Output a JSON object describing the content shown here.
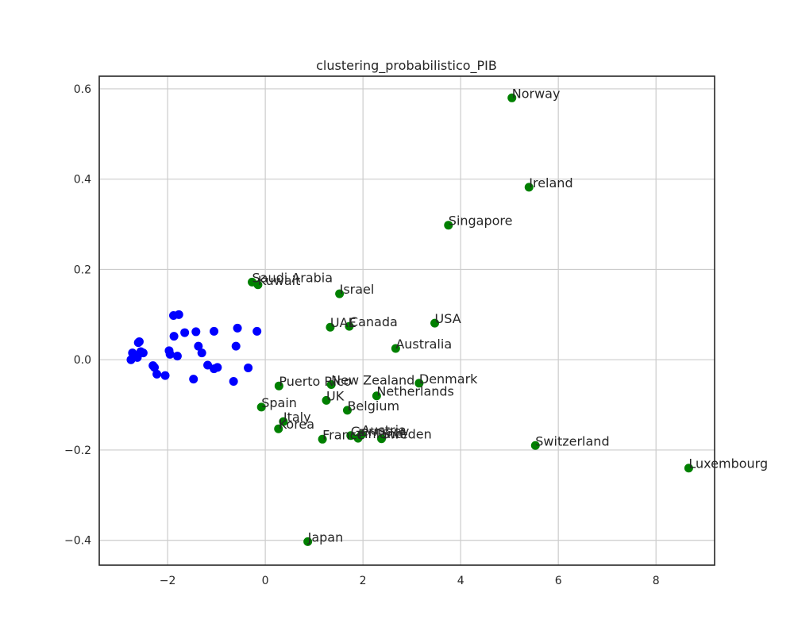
{
  "chart_data": {
    "type": "scatter",
    "title": "clustering_probabilistico_PIB",
    "xlabel": "",
    "ylabel": "",
    "xlim": [
      -3.4,
      9.2
    ],
    "ylim": [
      -0.455,
      0.628
    ],
    "xticks": [
      -2,
      0,
      2,
      4,
      6,
      8
    ],
    "xtick_labels": [
      "−2",
      "0",
      "2",
      "4",
      "6",
      "8"
    ],
    "yticks": [
      -0.4,
      -0.2,
      0.0,
      0.2,
      0.4,
      0.6
    ],
    "ytick_labels": [
      "−0.4",
      "−0.2",
      "0.0",
      "0.2",
      "0.4",
      "0.6"
    ],
    "grid": true,
    "colors": {
      "cluster_blue": "#0000ff",
      "cluster_green": "#008000"
    },
    "series": [
      {
        "color": "#0000ff",
        "points": [
          {
            "x": -2.75,
            "y": 0.0
          },
          {
            "x": -2.72,
            "y": 0.015
          },
          {
            "x": -2.68,
            "y": 0.008
          },
          {
            "x": -2.62,
            "y": 0.005
          },
          {
            "x": -2.6,
            "y": 0.038
          },
          {
            "x": -2.58,
            "y": 0.04
          },
          {
            "x": -2.55,
            "y": 0.018
          },
          {
            "x": -2.5,
            "y": 0.015
          },
          {
            "x": -2.3,
            "y": -0.013
          },
          {
            "x": -2.27,
            "y": -0.017
          },
          {
            "x": -2.22,
            "y": -0.032
          },
          {
            "x": -2.05,
            "y": -0.035
          },
          {
            "x": -1.97,
            "y": 0.02
          },
          {
            "x": -1.95,
            "y": 0.012
          },
          {
            "x": -1.88,
            "y": 0.098
          },
          {
            "x": -1.87,
            "y": 0.052
          },
          {
            "x": -1.8,
            "y": 0.008
          },
          {
            "x": -1.77,
            "y": 0.1
          },
          {
            "x": -1.65,
            "y": 0.06
          },
          {
            "x": -1.47,
            "y": -0.043
          },
          {
            "x": -1.42,
            "y": 0.062
          },
          {
            "x": -1.37,
            "y": 0.03
          },
          {
            "x": -1.3,
            "y": 0.015
          },
          {
            "x": -1.18,
            "y": -0.012
          },
          {
            "x": -1.05,
            "y": 0.063
          },
          {
            "x": -1.05,
            "y": -0.02
          },
          {
            "x": -0.98,
            "y": -0.017
          },
          {
            "x": -0.65,
            "y": -0.048
          },
          {
            "x": -0.6,
            "y": 0.03
          },
          {
            "x": -0.57,
            "y": 0.07
          },
          {
            "x": -0.35,
            "y": -0.018
          },
          {
            "x": -0.17,
            "y": 0.063
          }
        ]
      },
      {
        "color": "#008000",
        "points": [
          {
            "x": 5.05,
            "y": 0.58,
            "label": "Norway"
          },
          {
            "x": 5.4,
            "y": 0.382,
            "label": "Ireland"
          },
          {
            "x": 3.75,
            "y": 0.298,
            "label": "Singapore"
          },
          {
            "x": -0.27,
            "y": 0.172,
            "label": "Saudi Arabia"
          },
          {
            "x": -0.15,
            "y": 0.166,
            "label": "Kuwait"
          },
          {
            "x": 1.52,
            "y": 0.146,
            "label": "Israel"
          },
          {
            "x": 3.47,
            "y": 0.081,
            "label": "USA"
          },
          {
            "x": 1.33,
            "y": 0.072,
            "label": "UAE"
          },
          {
            "x": 1.72,
            "y": 0.074,
            "label": "Canada"
          },
          {
            "x": 2.67,
            "y": 0.025,
            "label": "Australia"
          },
          {
            "x": 3.15,
            "y": -0.052,
            "label": "Denmark"
          },
          {
            "x": 0.28,
            "y": -0.058,
            "label": "Puerto Rico"
          },
          {
            "x": 1.35,
            "y": -0.055,
            "label": "New Zealand"
          },
          {
            "x": 2.28,
            "y": -0.08,
            "label": "Netherlands"
          },
          {
            "x": 1.25,
            "y": -0.09,
            "label": "UK"
          },
          {
            "x": -0.08,
            "y": -0.105,
            "label": "Spain"
          },
          {
            "x": 1.68,
            "y": -0.112,
            "label": "Belgium"
          },
          {
            "x": 0.37,
            "y": -0.137,
            "label": "Italy"
          },
          {
            "x": 0.27,
            "y": -0.153,
            "label": "Korea"
          },
          {
            "x": 1.75,
            "y": -0.168,
            "label": "Germany"
          },
          {
            "x": 1.97,
            "y": -0.166,
            "label": "Austria"
          },
          {
            "x": 1.17,
            "y": -0.176,
            "label": "France"
          },
          {
            "x": 1.9,
            "y": -0.174,
            "label": "Finland"
          },
          {
            "x": 2.38,
            "y": -0.175,
            "label": "Sweden"
          },
          {
            "x": 5.53,
            "y": -0.19,
            "label": "Switzerland"
          },
          {
            "x": 8.67,
            "y": -0.24,
            "label": "Luxembourg"
          },
          {
            "x": 0.87,
            "y": -0.403,
            "label": "Japan"
          }
        ]
      }
    ]
  }
}
